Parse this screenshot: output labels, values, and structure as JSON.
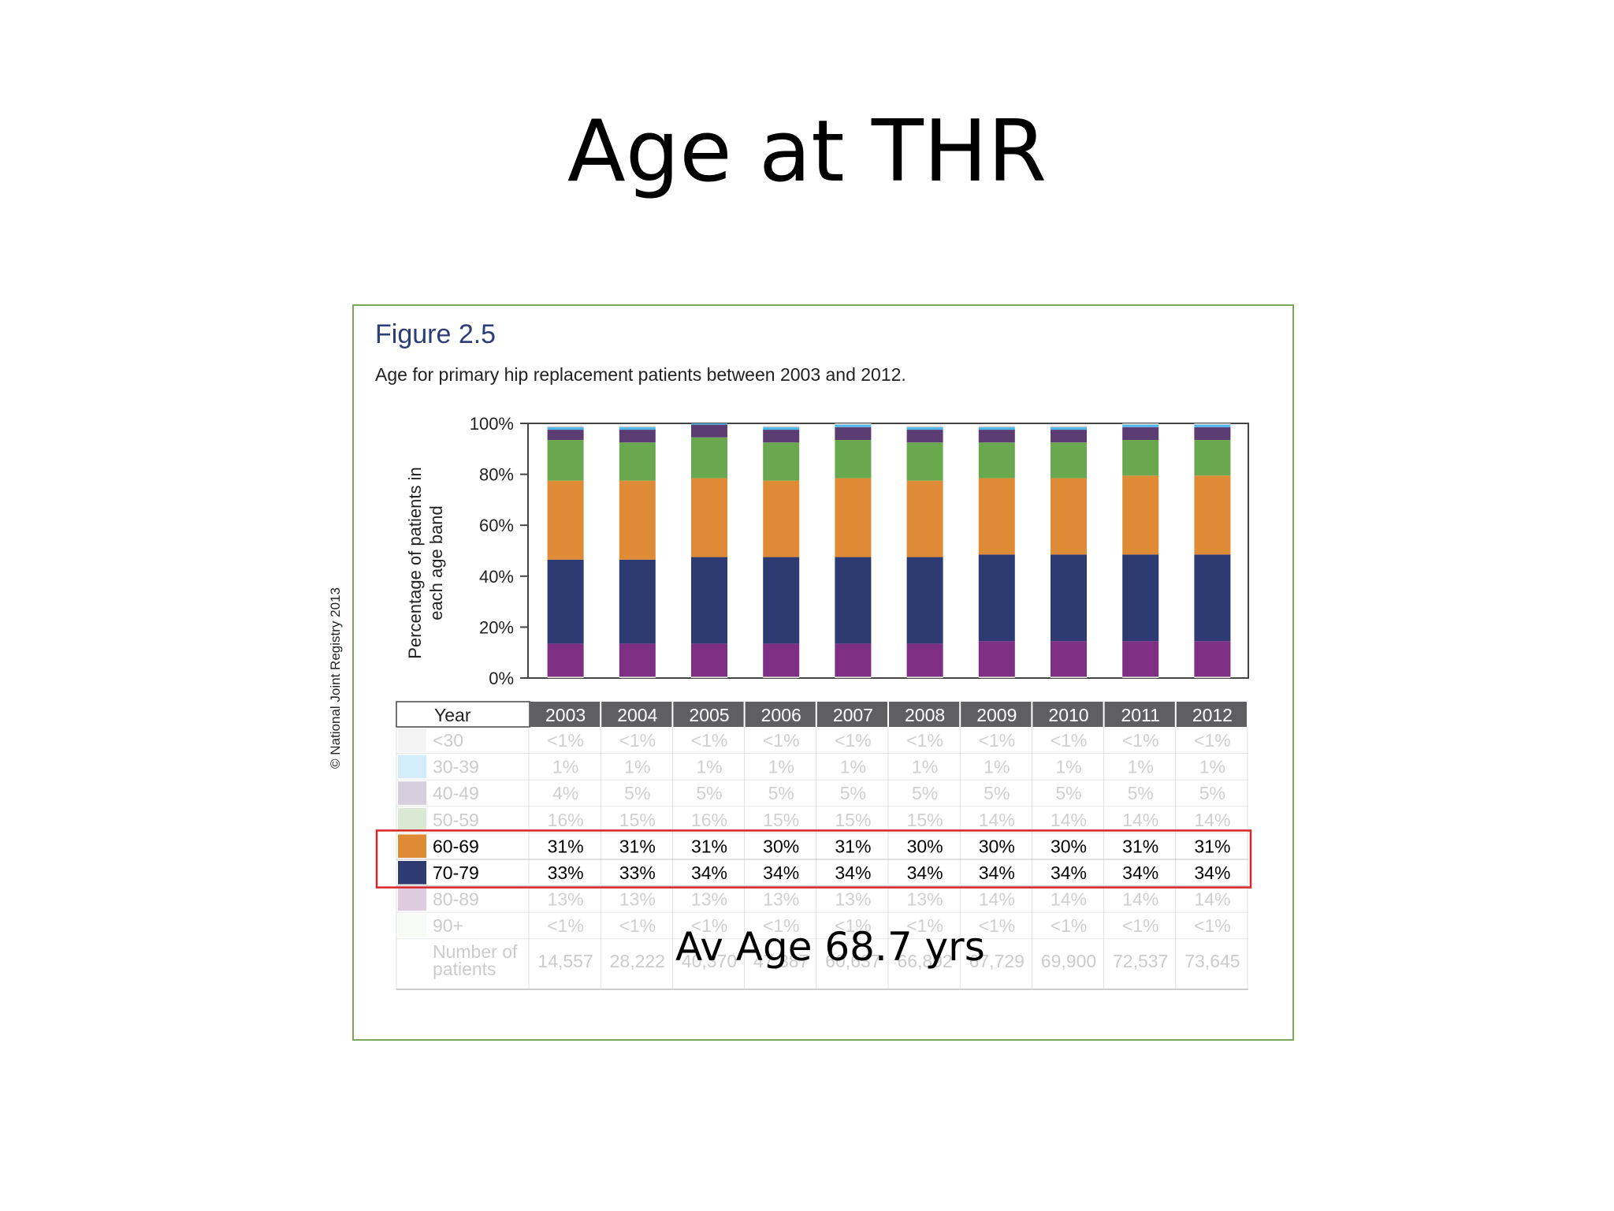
{
  "slide": {
    "title": "Age at THR",
    "annotation": "Av Age 68.7 yrs"
  },
  "figure": {
    "label": "Figure 2.5",
    "caption": "Age for primary hip replacement patients between 2003 and 2012.",
    "copyright": "© National Joint Registry 2013",
    "highlight_color": "#d9262b"
  },
  "chart_data": {
    "type": "bar",
    "stacked": true,
    "ylabel": [
      "Percentage of patients in",
      "each age band"
    ],
    "ylim": [
      0,
      100
    ],
    "yticks": [
      0,
      20,
      40,
      60,
      80,
      100
    ],
    "ytick_labels": [
      "0%",
      "20%",
      "40%",
      "60%",
      "80%",
      "100%"
    ],
    "grid": false,
    "categories": [
      "2003",
      "2004",
      "2005",
      "2006",
      "2007",
      "2008",
      "2009",
      "2010",
      "2011",
      "2012"
    ],
    "series": [
      {
        "name": "<30",
        "color": "#d4d4d6",
        "values": [
          0.5,
          0.5,
          0.5,
          0.5,
          0.5,
          0.5,
          0.5,
          0.5,
          0.5,
          0.5
        ],
        "labels": [
          "<1%",
          "<1%",
          "<1%",
          "<1%",
          "<1%",
          "<1%",
          "<1%",
          "<1%",
          "<1%",
          "<1%"
        ],
        "highlight": false
      },
      {
        "name": "30-39",
        "color": "#4fb4e6",
        "values": [
          1,
          1,
          1,
          1,
          1,
          1,
          1,
          1,
          1,
          1
        ],
        "labels": [
          "1%",
          "1%",
          "1%",
          "1%",
          "1%",
          "1%",
          "1%",
          "1%",
          "1%",
          "1%"
        ],
        "highlight": false
      },
      {
        "name": "40-49",
        "color": "#5b3d74",
        "values": [
          4,
          5,
          5,
          5,
          5,
          5,
          5,
          5,
          5,
          5
        ],
        "labels": [
          "4%",
          "5%",
          "5%",
          "5%",
          "5%",
          "5%",
          "5%",
          "5%",
          "5%",
          "5%"
        ],
        "highlight": false
      },
      {
        "name": "50-59",
        "color": "#6aa84f",
        "values": [
          16,
          15,
          16,
          15,
          15,
          15,
          14,
          14,
          14,
          14
        ],
        "labels": [
          "16%",
          "15%",
          "16%",
          "15%",
          "15%",
          "15%",
          "14%",
          "14%",
          "14%",
          "14%"
        ],
        "highlight": false
      },
      {
        "name": "60-69",
        "color": "#df8a35",
        "values": [
          31,
          31,
          31,
          30,
          31,
          30,
          30,
          30,
          31,
          31
        ],
        "labels": [
          "31%",
          "31%",
          "31%",
          "30%",
          "31%",
          "30%",
          "30%",
          "30%",
          "31%",
          "31%"
        ],
        "highlight": true
      },
      {
        "name": "70-79",
        "color": "#2e3b73",
        "values": [
          33,
          33,
          34,
          34,
          34,
          34,
          34,
          34,
          34,
          34
        ],
        "labels": [
          "33%",
          "33%",
          "34%",
          "34%",
          "34%",
          "34%",
          "34%",
          "34%",
          "34%",
          "34%"
        ],
        "highlight": true
      },
      {
        "name": "80-89",
        "color": "#7e2e83",
        "values": [
          13,
          13,
          13,
          13,
          13,
          13,
          14,
          14,
          14,
          14
        ],
        "labels": [
          "13%",
          "13%",
          "13%",
          "13%",
          "13%",
          "13%",
          "14%",
          "14%",
          "14%",
          "14%"
        ],
        "highlight": false
      },
      {
        "name": "90+",
        "color": "#e3ebd6",
        "values": [
          0.5,
          0.5,
          0.5,
          0.5,
          0.5,
          0.5,
          0.5,
          0.5,
          0.5,
          0.5
        ],
        "labels": [
          "<1%",
          "<1%",
          "<1%",
          "<1%",
          "<1%",
          "<1%",
          "<1%",
          "<1%",
          "<1%",
          "<1%"
        ],
        "highlight": false
      }
    ],
    "stack_order_bottom_to_top": [
      "90+",
      "80-89",
      "70-79",
      "60-69",
      "50-59",
      "40-49",
      "30-39",
      "<30"
    ],
    "table": {
      "year_header": "Year",
      "patients_label": [
        "Number of",
        "patients"
      ],
      "patients": [
        "14,557",
        "28,222",
        "40,370",
        "47,387",
        "60,637",
        "66,892",
        "67,729",
        "69,900",
        "72,537",
        "73,645"
      ]
    }
  }
}
